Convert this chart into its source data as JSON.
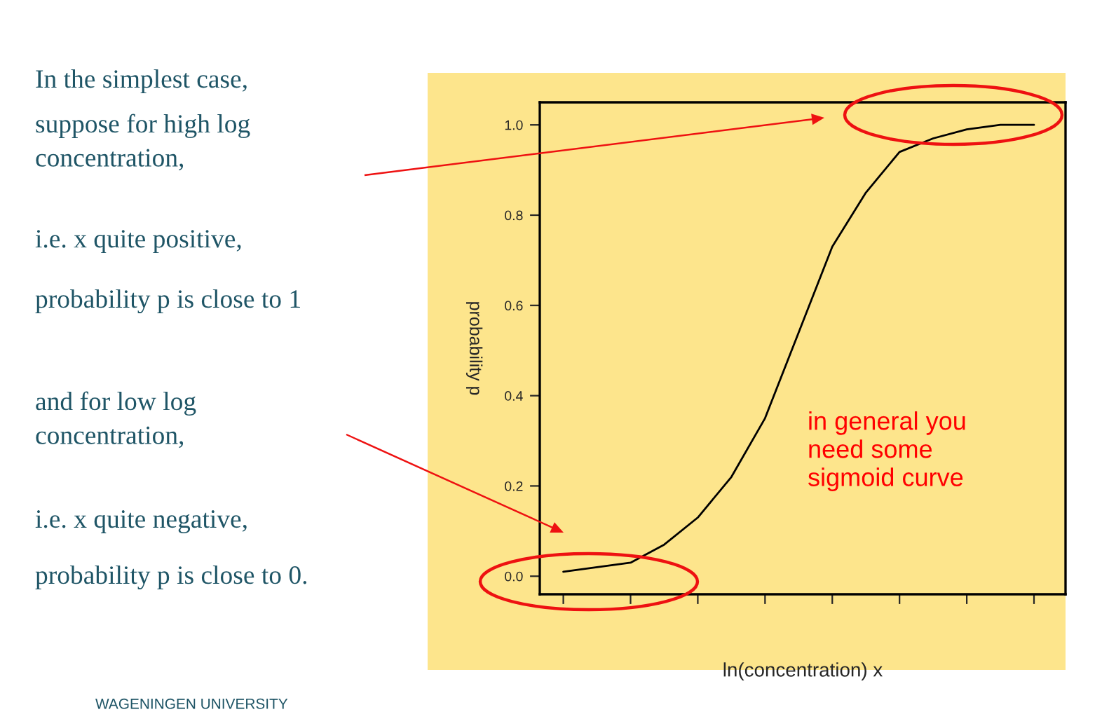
{
  "chart_data": {
    "type": "line",
    "xlabel": "ln(concentration) x",
    "ylabel": "probability p",
    "color": "#000000",
    "categories": [
      null,
      null,
      null,
      null,
      null,
      null,
      null,
      null,
      null,
      null,
      null,
      null,
      null,
      null,
      null
    ],
    "values": [
      0.01,
      0.02,
      0.03,
      0.07,
      0.13,
      0.22,
      0.35,
      0.54,
      0.73,
      0.85,
      0.94,
      0.97,
      0.99,
      1.0,
      1.0
    ],
    "ylim": [
      -0.04,
      1.05
    ],
    "yticks": [
      {
        "value": 0,
        "label": "0.0"
      },
      {
        "value": 0.2,
        "label": "0.2"
      },
      {
        "value": 0.4,
        "label": "0.4"
      },
      {
        "value": 0.6,
        "label": "0.6"
      },
      {
        "value": 0.8,
        "label": "0.8"
      },
      {
        "value": 1.0,
        "label": "1.0"
      }
    ],
    "tick_labels": "y",
    "grid": false,
    "legend": false,
    "marker": "none",
    "line_style": "solid",
    "annotations": [
      "In the simplest case,",
      "suppose for high log\nconcentration,",
      "i.e. x quite positive,",
      "probability p is close to 1",
      "and for low log\nconcentration,",
      "i.e. x quite negative,",
      "probability p is close to 0.",
      "in general you\nneed some\nsigmoid curve",
      "WAGENINGEN UNIVERSITY"
    ]
  }
}
